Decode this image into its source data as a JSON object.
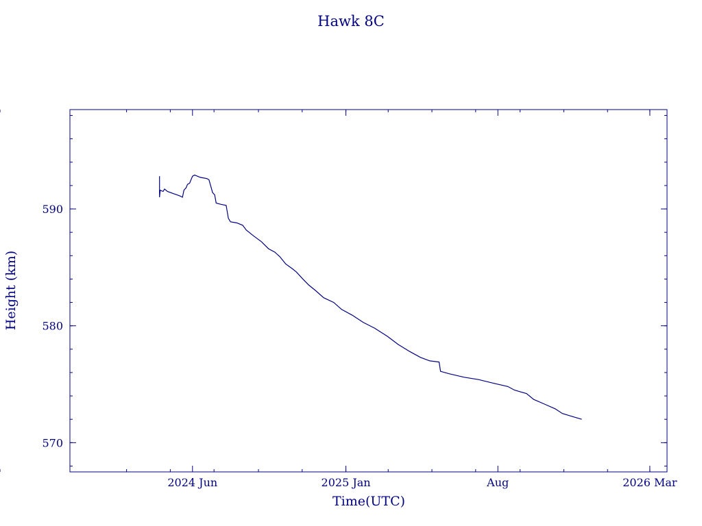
{
  "chart_data": {
    "type": "line",
    "title": "Hawk 8C",
    "xlabel": "Time(UTC)",
    "ylabel": "Height (km)",
    "color": "#000080",
    "grid": false,
    "x_ticks": [
      {
        "date": "2024-06-01",
        "label": "2024 Jun"
      },
      {
        "date": "2025-01-01",
        "label": "2025 Jan"
      },
      {
        "date": "2025-08-01",
        "label": "Aug"
      },
      {
        "date": "2026-03-01",
        "label": "2026 Mar"
      }
    ],
    "xlim": [
      "2023-12-13",
      "2026-03-25"
    ],
    "ylim": [
      567.5,
      598.5
    ],
    "y_ticks": [
      570,
      580,
      590
    ],
    "series": [
      {
        "points": [
          [
            "2024-04-16",
            592.8
          ],
          [
            "2024-04-16",
            591.0
          ],
          [
            "2024-04-17",
            591.6
          ],
          [
            "2024-04-21",
            591.5
          ],
          [
            "2024-04-23",
            591.7
          ],
          [
            "2024-04-27",
            591.5
          ],
          [
            "2024-05-06",
            591.3
          ],
          [
            "2024-05-15",
            591.1
          ],
          [
            "2024-05-18",
            591.0
          ],
          [
            "2024-05-20",
            591.6
          ],
          [
            "2024-05-23",
            591.8
          ],
          [
            "2024-05-25",
            592.1
          ],
          [
            "2024-05-28",
            592.2
          ],
          [
            "2024-06-01",
            592.8
          ],
          [
            "2024-06-04",
            592.9
          ],
          [
            "2024-06-12",
            592.7
          ],
          [
            "2024-06-21",
            592.6
          ],
          [
            "2024-06-24",
            592.5
          ],
          [
            "2024-06-29",
            591.4
          ],
          [
            "2024-07-02",
            591.2
          ],
          [
            "2024-07-04",
            590.5
          ],
          [
            "2024-07-10",
            590.4
          ],
          [
            "2024-07-18",
            590.3
          ],
          [
            "2024-07-21",
            589.2
          ],
          [
            "2024-07-24",
            588.9
          ],
          [
            "2024-08-02",
            588.8
          ],
          [
            "2024-08-10",
            588.6
          ],
          [
            "2024-08-15",
            588.2
          ],
          [
            "2024-08-25",
            587.7
          ],
          [
            "2024-09-05",
            587.2
          ],
          [
            "2024-09-15",
            586.6
          ],
          [
            "2024-09-24",
            586.3
          ],
          [
            "2024-10-01",
            585.9
          ],
          [
            "2024-10-09",
            585.3
          ],
          [
            "2024-10-18",
            584.9
          ],
          [
            "2024-10-24",
            584.6
          ],
          [
            "2024-11-02",
            584.0
          ],
          [
            "2024-11-10",
            583.5
          ],
          [
            "2024-11-20",
            583.0
          ],
          [
            "2024-12-01",
            582.4
          ],
          [
            "2024-12-15",
            582.0
          ],
          [
            "2024-12-26",
            581.4
          ],
          [
            "2025-01-10",
            580.9
          ],
          [
            "2025-01-25",
            580.3
          ],
          [
            "2025-02-10",
            579.8
          ],
          [
            "2025-02-28",
            579.1
          ],
          [
            "2025-03-15",
            578.4
          ],
          [
            "2025-03-31",
            577.8
          ],
          [
            "2025-04-15",
            577.3
          ],
          [
            "2025-04-28",
            577.0
          ],
          [
            "2025-05-11",
            576.9
          ],
          [
            "2025-05-13",
            576.1
          ],
          [
            "2025-05-25",
            575.9
          ],
          [
            "2025-06-15",
            575.6
          ],
          [
            "2025-07-05",
            575.4
          ],
          [
            "2025-07-25",
            575.1
          ],
          [
            "2025-08-15",
            574.8
          ],
          [
            "2025-08-24",
            574.5
          ],
          [
            "2025-09-10",
            574.2
          ],
          [
            "2025-09-20",
            573.7
          ],
          [
            "2025-10-05",
            573.3
          ],
          [
            "2025-10-20",
            572.9
          ],
          [
            "2025-10-30",
            572.5
          ],
          [
            "2025-11-15",
            572.2
          ],
          [
            "2025-11-26",
            572.0
          ]
        ]
      }
    ]
  }
}
